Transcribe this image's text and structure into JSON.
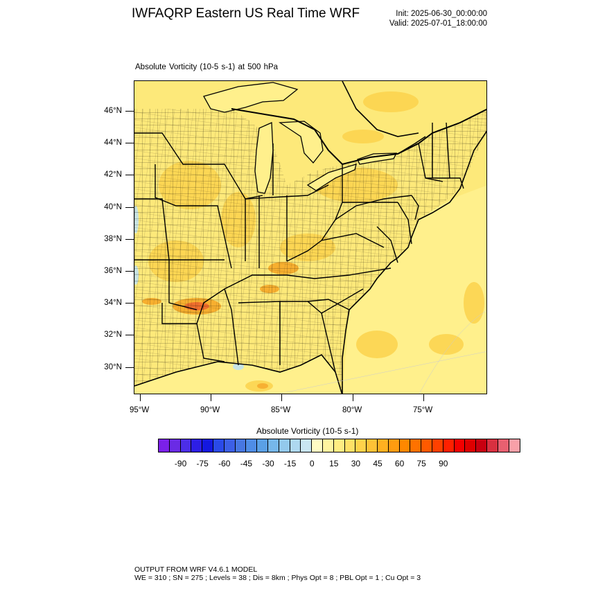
{
  "header": {
    "title": "IWFAQRP Eastern US Real Time WRF",
    "init": "Init: 2025-06-30_00:00:00",
    "valid": "Valid: 2025-07-01_18:00:00"
  },
  "plot": {
    "field_label": "Absolute Vorticity   (10-5 s-1)     at   500 hPa",
    "lat_labels": [
      "46°N",
      "44°N",
      "42°N",
      "40°N",
      "38°N",
      "36°N",
      "34°N",
      "32°N",
      "30°N"
    ],
    "lon_labels": [
      "95°W",
      "90°W",
      "85°W",
      "80°W",
      "75°W"
    ],
    "colors": {
      "land_base": "#fde97a",
      "water_base": "#fff08c",
      "positive_light": "#fcd34d",
      "positive_medium": "#f6a623",
      "positive_strong": "#ef5a20",
      "negative_light": "#bfe3f5",
      "border": "#000000"
    }
  },
  "colorbar": {
    "title": "Absolute Vorticity  (10-5 s-1)",
    "colors": [
      "#7b20e8",
      "#6a2be5",
      "#4c2ee8",
      "#2d1ee6",
      "#1418e0",
      "#2a4ae8",
      "#3c5fe6",
      "#4777e2",
      "#4f8de6",
      "#5aa0e6",
      "#76b7ea",
      "#93c9ec",
      "#aed8ef",
      "#c9e6f2",
      "#fffcc4",
      "#fff4a0",
      "#ffec82",
      "#ffe066",
      "#ffd24a",
      "#ffc236",
      "#ffb020",
      "#ff9c10",
      "#ff8800",
      "#ff7200",
      "#ff5a00",
      "#ff4000",
      "#ff2000",
      "#f40000",
      "#de0000",
      "#c80010",
      "#d83040",
      "#e86070",
      "#f8a0a8"
    ],
    "labels": [
      "-90",
      "-75",
      "-60",
      "-45",
      "-30",
      "-15",
      "0",
      "15",
      "30",
      "45",
      "60",
      "75",
      "90"
    ]
  },
  "footer": {
    "line1": "OUTPUT FROM WRF V4.6.1 MODEL",
    "line2": "WE = 310 ; SN = 275 ; Levels = 38 ; Dis = 8km ; Phys Opt = 8 ; PBL Opt = 1 ; Cu Opt = 3"
  }
}
